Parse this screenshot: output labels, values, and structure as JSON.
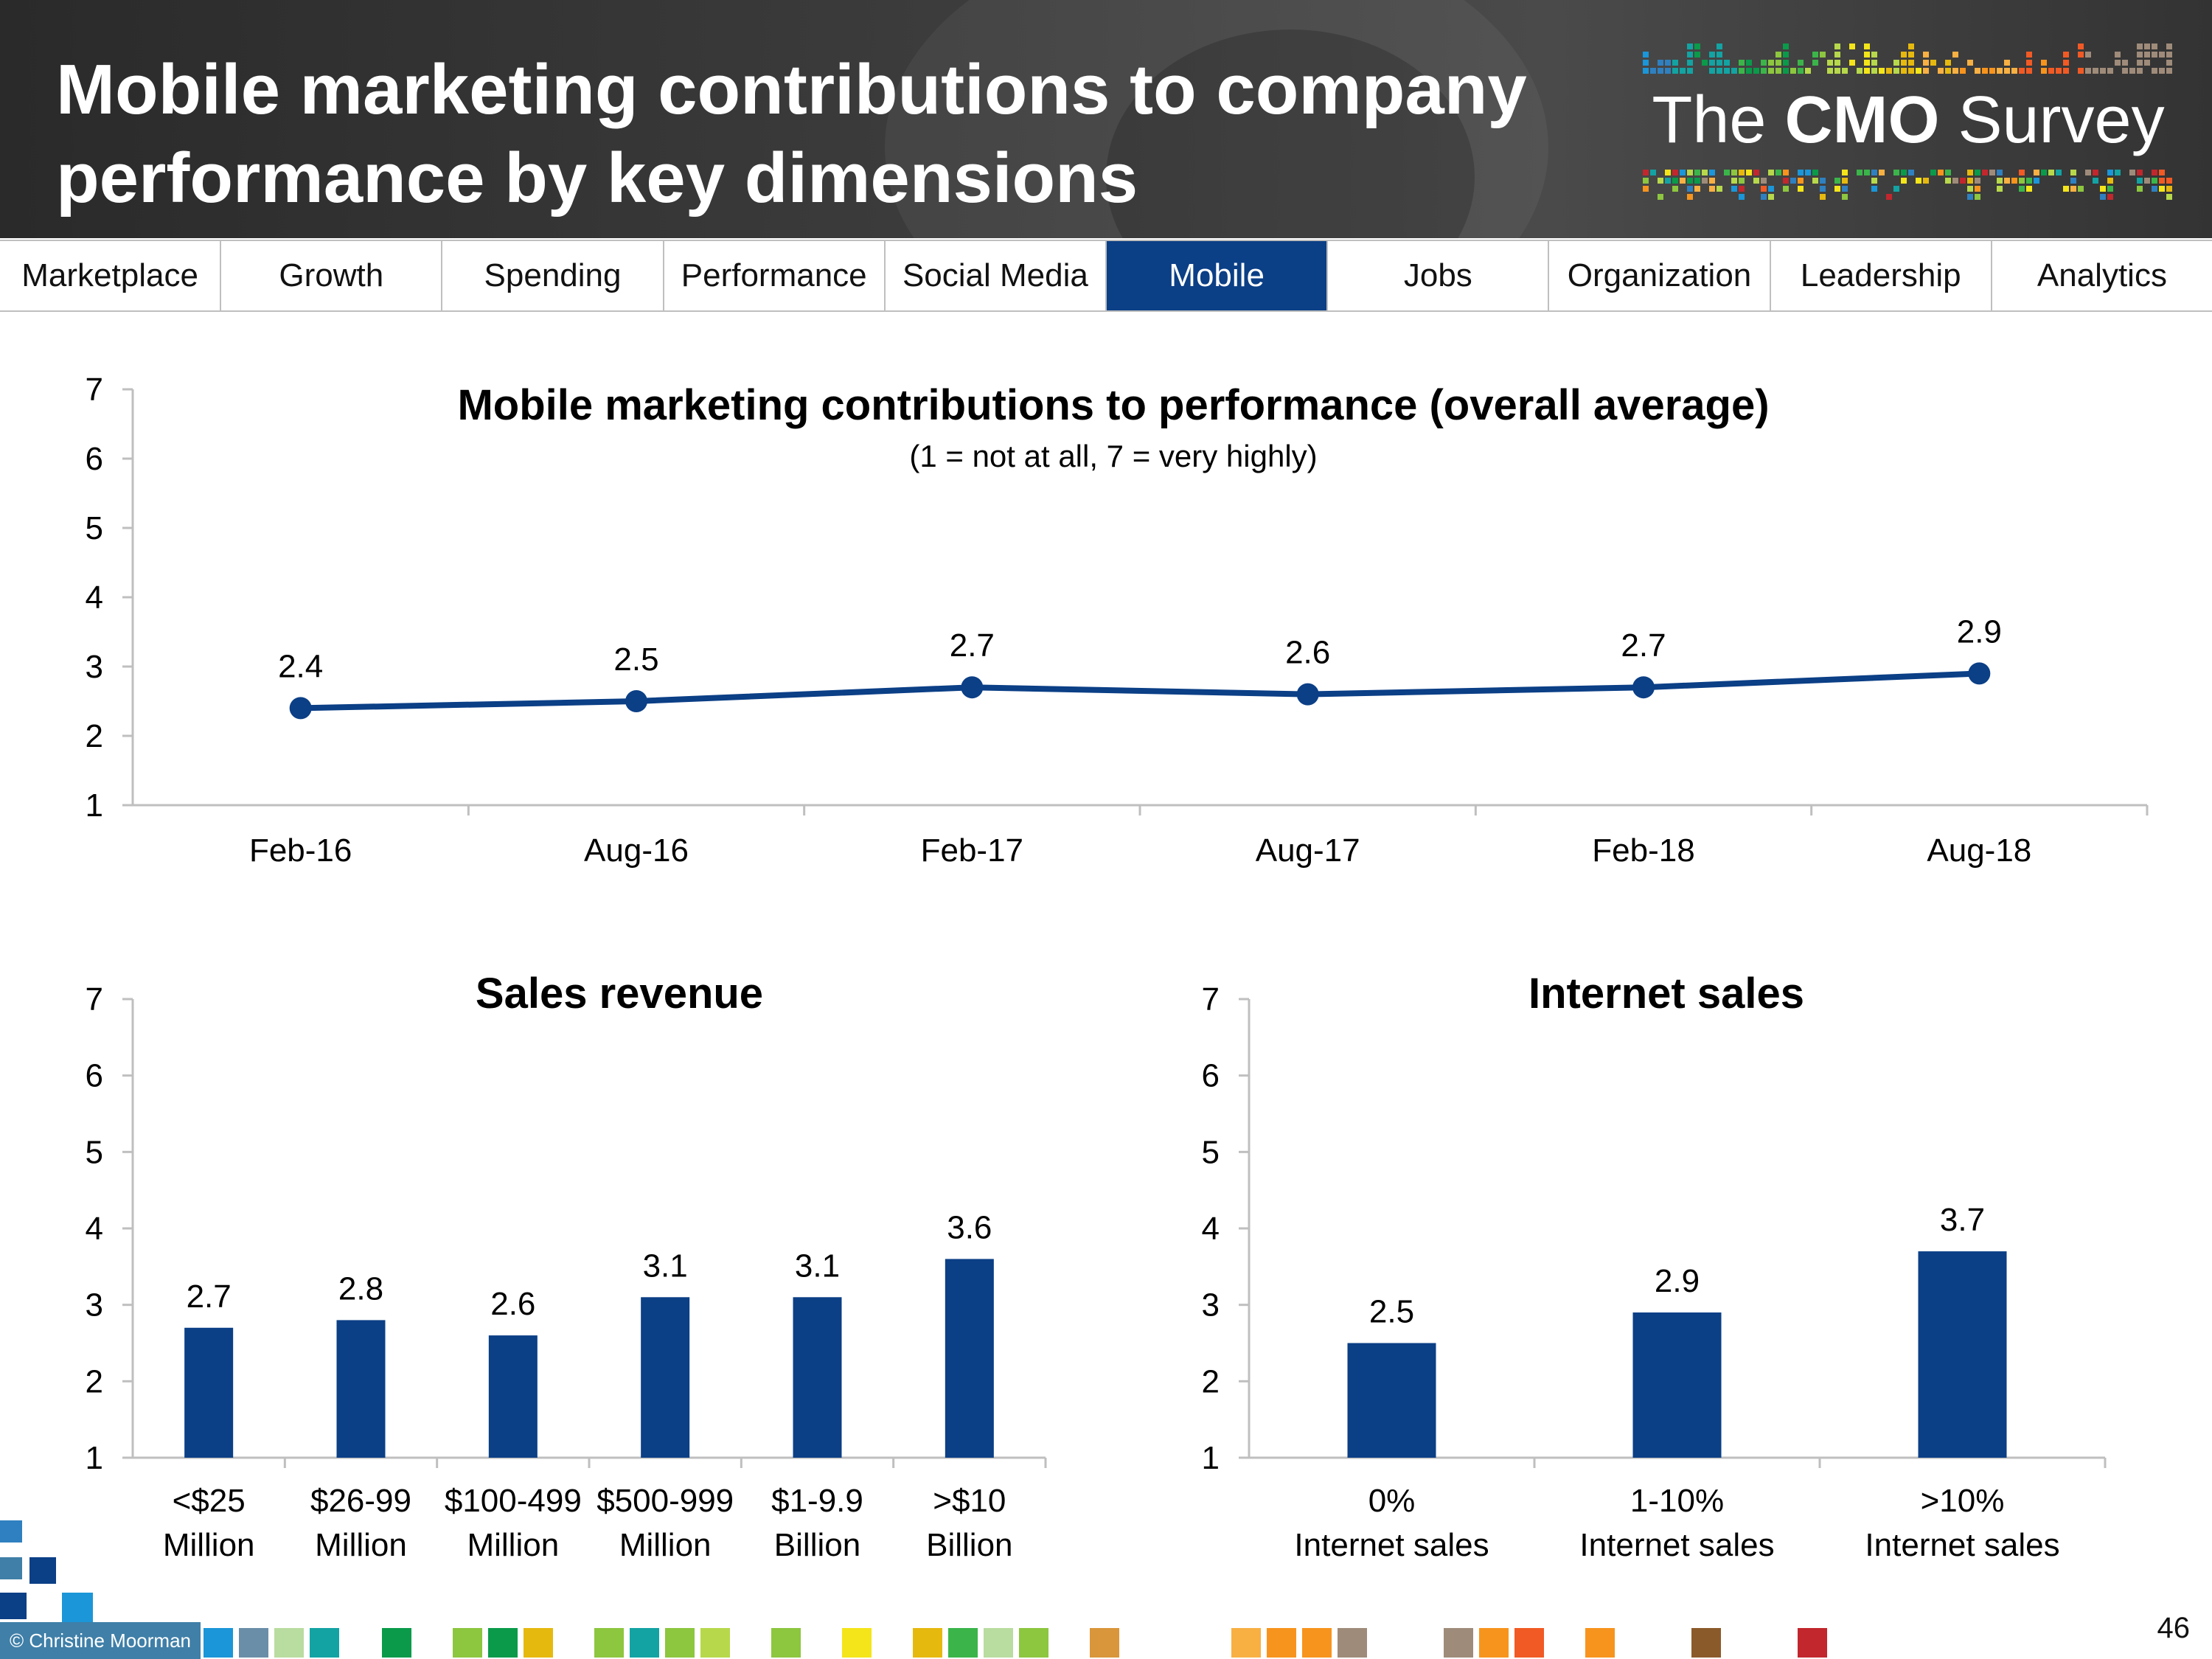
{
  "header": {
    "title_line1": "Mobile marketing contributions to company",
    "title_line2": "performance by key dimensions",
    "logo_prefix": "The ",
    "logo_bold": "CMO",
    "logo_suffix": " Survey"
  },
  "nav": {
    "tabs": [
      {
        "label": "Marketplace"
      },
      {
        "label": "Growth"
      },
      {
        "label": "Spending"
      },
      {
        "label": "Performance"
      },
      {
        "label": "Social Media"
      },
      {
        "label": "Mobile"
      },
      {
        "label": "Jobs"
      },
      {
        "label": "Organization"
      },
      {
        "label": "Leadership"
      },
      {
        "label": "Analytics"
      }
    ],
    "active": "Mobile"
  },
  "footer": {
    "copyright": "© Christine Moorman",
    "page_number": "46"
  },
  "colors": {
    "primary": "#0b3f86",
    "axis": "#bfbfbf"
  },
  "chart_data": [
    {
      "type": "line",
      "title": "Mobile marketing contributions to performance (overall average)",
      "subtitle": "(1 = not at all, 7 = very highly)",
      "categories": [
        "Feb-16",
        "Aug-16",
        "Feb-17",
        "Aug-17",
        "Feb-18",
        "Aug-18"
      ],
      "values": [
        2.4,
        2.5,
        2.7,
        2.6,
        2.7,
        2.9
      ],
      "labels": [
        "2.4",
        "2.5",
        "2.7",
        "2.6",
        "2.7",
        "2.9"
      ],
      "ylim": [
        1,
        7
      ],
      "yticks": [
        "1",
        "2",
        "3",
        "4",
        "5",
        "6",
        "7"
      ],
      "xlabel": "",
      "ylabel": ""
    },
    {
      "type": "bar",
      "title": "Sales revenue",
      "categories": [
        [
          "<$25",
          "Million"
        ],
        [
          "$26-99",
          "Million"
        ],
        [
          "$100-499",
          "Million"
        ],
        [
          "$500-999",
          "Million"
        ],
        [
          "$1-9.9",
          "Billion"
        ],
        [
          ">$10",
          "Billion"
        ]
      ],
      "values": [
        2.7,
        2.8,
        2.6,
        3.1,
        3.1,
        3.6
      ],
      "labels": [
        "2.7",
        "2.8",
        "2.6",
        "3.1",
        "3.1",
        "3.6"
      ],
      "ylim": [
        1,
        7
      ],
      "yticks": [
        "1",
        "2",
        "3",
        "4",
        "5",
        "6",
        "7"
      ],
      "xlabel": "",
      "ylabel": ""
    },
    {
      "type": "bar",
      "title": "Internet sales",
      "categories": [
        [
          "0%",
          "Internet sales"
        ],
        [
          "1-10%",
          "Internet sales"
        ],
        [
          ">10%",
          "Internet sales"
        ]
      ],
      "values": [
        2.5,
        2.9,
        3.7
      ],
      "labels": [
        "2.5",
        "2.9",
        "3.7"
      ],
      "ylim": [
        1,
        7
      ],
      "yticks": [
        "1",
        "2",
        "3",
        "4",
        "5",
        "6",
        "7"
      ],
      "xlabel": "",
      "ylabel": ""
    }
  ]
}
